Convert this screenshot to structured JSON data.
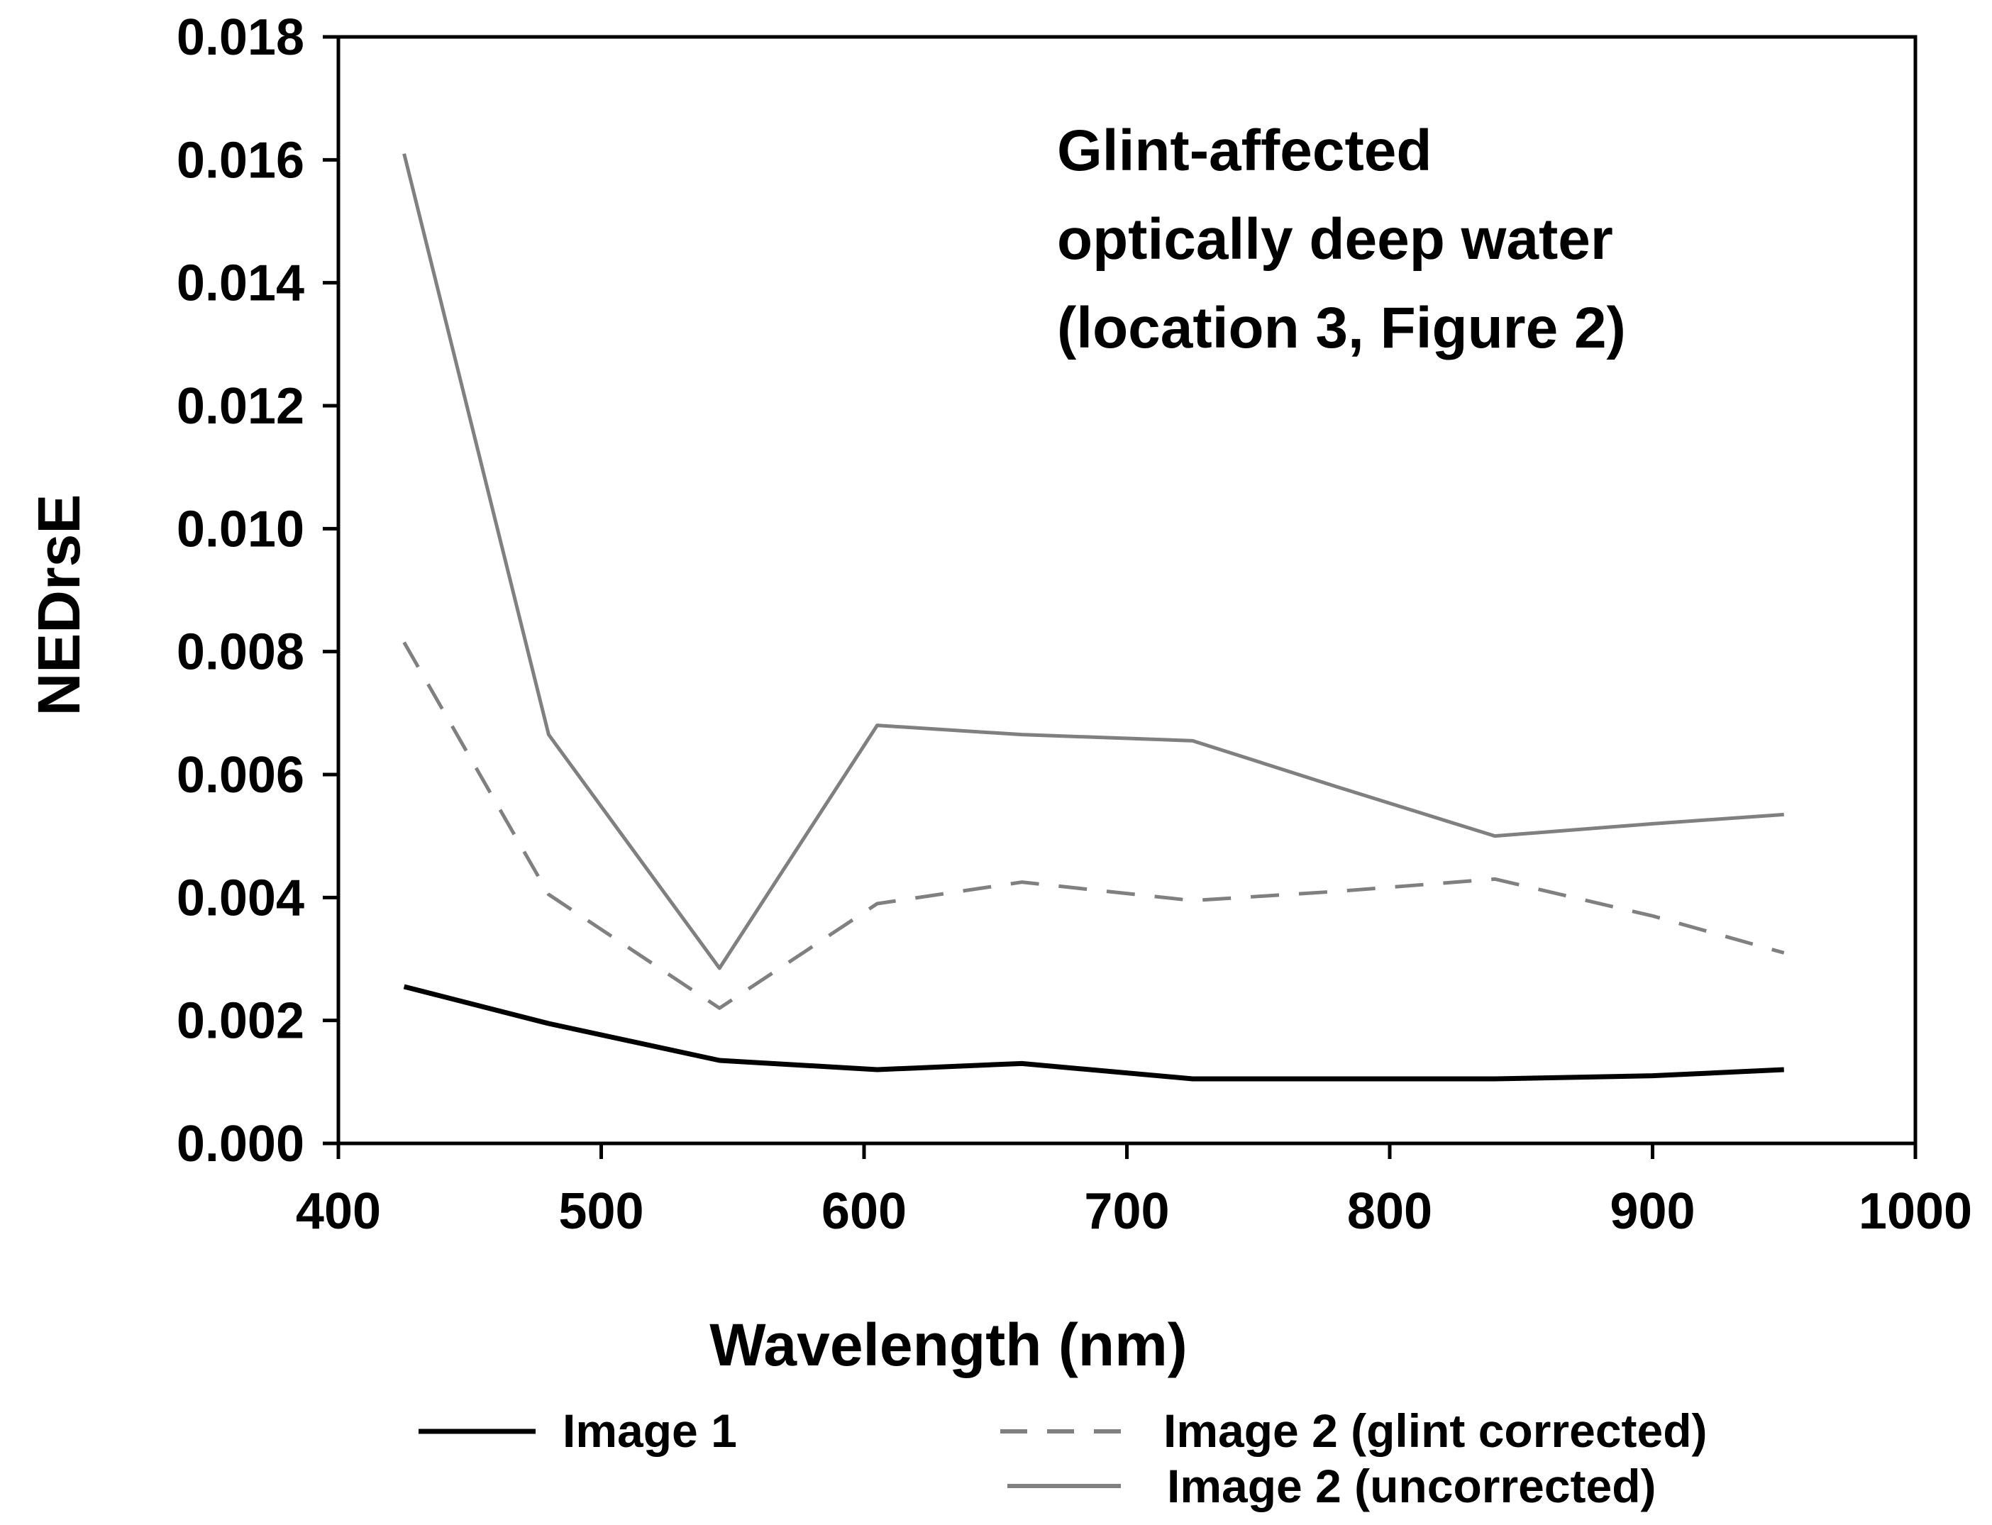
{
  "chart_data": {
    "type": "line",
    "title": "",
    "annotation": [
      "Glint-affected",
      "optically deep water",
      "(location 3, Figure 2)"
    ],
    "xlabel": "Wavelength (nm)",
    "ylabel": "NEDrsE",
    "xlim": [
      400,
      1000
    ],
    "ylim": [
      0.0,
      0.018
    ],
    "xticks": [
      400,
      500,
      600,
      700,
      800,
      900,
      1000
    ],
    "xtick_labels": [
      "400",
      "500",
      "600",
      "700",
      "800",
      "900",
      "1000"
    ],
    "yticks": [
      0.0,
      0.002,
      0.004,
      0.006,
      0.008,
      0.01,
      0.012,
      0.014,
      0.016,
      0.018
    ],
    "ytick_labels": [
      "0.000",
      "0.002",
      "0.004",
      "0.006",
      "0.008",
      "0.010",
      "0.012",
      "0.014",
      "0.016",
      "0.018"
    ],
    "grid": false,
    "legend_position": "bottom",
    "series": [
      {
        "name": "Image 1",
        "color": "#000000",
        "dash": "solid",
        "x": [
          425,
          480,
          545,
          605,
          660,
          725,
          780,
          840,
          900,
          950
        ],
        "y": [
          0.00255,
          0.00195,
          0.00135,
          0.0012,
          0.0013,
          0.00105,
          0.00105,
          0.00105,
          0.0011,
          0.0012
        ]
      },
      {
        "name": "Image 2 (glint corrected)",
        "color": "#808080",
        "dash": "dashed",
        "x": [
          425,
          480,
          545,
          605,
          660,
          725,
          780,
          840,
          900,
          950
        ],
        "y": [
          0.00815,
          0.00405,
          0.0022,
          0.0039,
          0.00425,
          0.00395,
          0.0041,
          0.0043,
          0.0037,
          0.0031
        ]
      },
      {
        "name": "Image 2 (uncorrected)",
        "color": "#808080",
        "dash": "solid",
        "x": [
          425,
          480,
          545,
          605,
          660,
          725,
          780,
          840,
          900,
          950
        ],
        "y": [
          0.0161,
          0.00665,
          0.00285,
          0.0068,
          0.00665,
          0.00655,
          0.0058,
          0.005,
          0.0052,
          0.00535
        ]
      }
    ]
  }
}
